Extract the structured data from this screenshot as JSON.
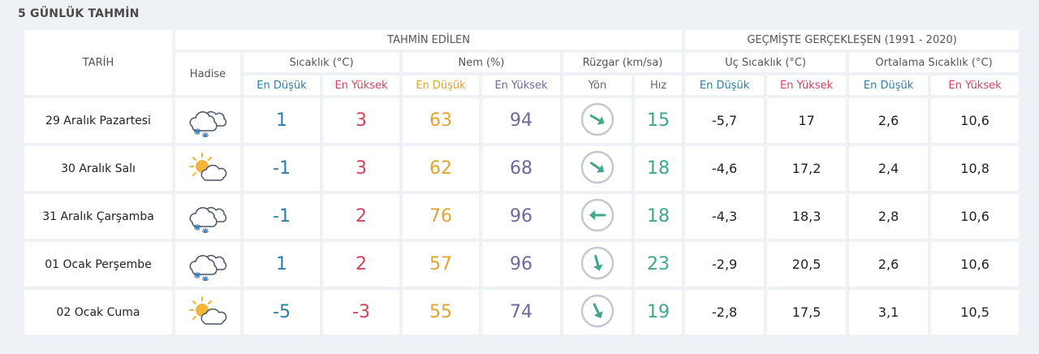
{
  "title": "5 GÜNLÜK TAHMİN",
  "headers": {
    "date": "TARİH",
    "forecast_group": "TAHMİN EDİLEN",
    "history_group": "GEÇMİŞTE GERÇEKLEŞEN (1991 - 2020)",
    "event": "Hadise",
    "temperature": "Sıcaklık (°C)",
    "humidity": "Nem (%)",
    "wind": "Rüzgar (km/sa)",
    "extreme_temp": "Uç Sıcaklık (°C)",
    "average_temp": "Ortalama Sıcaklık (°C)",
    "lowest": "En Düşük",
    "highest": "En Yüksek",
    "direction": "Yön",
    "speed": "Hız"
  },
  "colors": {
    "low": "#2f7ea6",
    "high": "#d0445b",
    "humidity_low": "#e0a531",
    "humidity_high": "#6d6a9b",
    "wind_speed": "#3fa88a"
  },
  "days": [
    {
      "date": "29 Aralık Pazartesi",
      "icon": "snow-cloud-icon",
      "temp_low": "1",
      "temp_high": "3",
      "hum_low": "63",
      "hum_high": "94",
      "wind_dir_deg": 120,
      "wind_speed": "15",
      "ext_low": "-5,7",
      "ext_high": "17",
      "avg_low": "2,6",
      "avg_high": "10,6"
    },
    {
      "date": "30 Aralık Salı",
      "icon": "partly-cloudy-sun-icon",
      "temp_low": "-1",
      "temp_high": "3",
      "hum_low": "62",
      "hum_high": "68",
      "wind_dir_deg": 125,
      "wind_speed": "18",
      "ext_low": "-4,6",
      "ext_high": "17,2",
      "avg_low": "2,4",
      "avg_high": "10,8"
    },
    {
      "date": "31 Aralık Çarşamba",
      "icon": "snow-cloud-icon",
      "temp_low": "-1",
      "temp_high": "2",
      "hum_low": "76",
      "hum_high": "96",
      "wind_dir_deg": 270,
      "wind_speed": "18",
      "ext_low": "-4,3",
      "ext_high": "18,3",
      "avg_low": "2,8",
      "avg_high": "10,6"
    },
    {
      "date": "01 Ocak Perşembe",
      "icon": "snow-cloud-icon",
      "temp_low": "1",
      "temp_high": "2",
      "hum_low": "57",
      "hum_high": "96",
      "wind_dir_deg": 165,
      "wind_speed": "23",
      "ext_low": "-2,9",
      "ext_high": "20,5",
      "avg_low": "2,6",
      "avg_high": "10,6"
    },
    {
      "date": "02 Ocak Cuma",
      "icon": "partly-cloudy-sun-icon",
      "temp_low": "-5",
      "temp_high": "-3",
      "hum_low": "55",
      "hum_high": "74",
      "wind_dir_deg": 155,
      "wind_speed": "19",
      "ext_low": "-2,8",
      "ext_high": "17,5",
      "avg_low": "3,1",
      "avg_high": "10,5"
    }
  ]
}
